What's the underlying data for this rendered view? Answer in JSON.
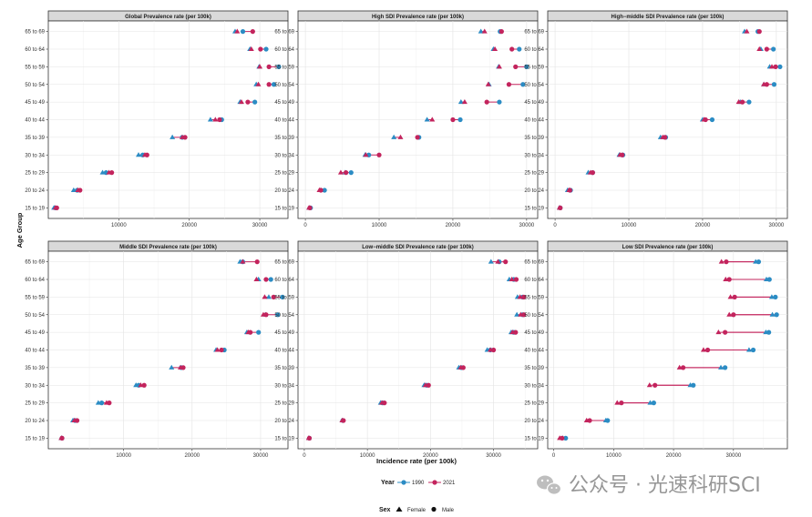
{
  "chart_data": {
    "type": "dumbbell",
    "xlabel": "Incidence rate (per 100k)",
    "ylabel": "Age Group",
    "categories": [
      "15 to 19",
      "20 to 24",
      "25 to 29",
      "30 to 34",
      "35 to 39",
      "40 to 44",
      "45 to 49",
      "50 to 54",
      "55 to 59",
      "60 to 64",
      "65 to 69"
    ],
    "years": [
      "1990",
      "2021"
    ],
    "sexes": [
      "Female",
      "Male"
    ],
    "year_legend_title": "Year",
    "sex_legend_title": "Sex",
    "colors": {
      "1990": "#2b8cc4",
      "2021": "#c3245d",
      "segment": "#c3245d"
    },
    "panels": [
      {
        "title": "Global Prevalence rate (per 100k)",
        "xlim": [
          0,
          34000
        ],
        "xticks": [
          10000,
          20000,
          30000
        ],
        "f1990": [
          800,
          3600,
          7700,
          12800,
          17600,
          23000,
          27200,
          29500,
          29900,
          28600,
          26500
        ],
        "m1990": [
          1000,
          4100,
          8200,
          13400,
          19000,
          24600,
          29300,
          32000,
          32700,
          30900,
          27600
        ],
        "f2021": [
          1000,
          4200,
          8600,
          13700,
          19000,
          23700,
          27400,
          29800,
          30000,
          28800,
          26800
        ],
        "m2021": [
          1200,
          4500,
          9000,
          14000,
          19400,
          24300,
          28300,
          31300,
          31300,
          30100,
          29000
        ]
      },
      {
        "title": "High SDI Prevalence rate (per 100k)",
        "xlim": [
          -1000,
          31500
        ],
        "xticks": [
          0,
          10000,
          20000,
          30000
        ],
        "f1990": [
          500,
          2100,
          5400,
          8100,
          12000,
          16500,
          21100,
          24900,
          26200,
          25500,
          23800
        ],
        "m1990": [
          700,
          2600,
          6200,
          8600,
          15400,
          21000,
          26300,
          29500,
          30000,
          29000,
          26400
        ],
        "f2021": [
          500,
          1900,
          4800,
          8200,
          12900,
          17200,
          21600,
          24800,
          26300,
          25700,
          24300
        ],
        "m2021": [
          600,
          2100,
          5500,
          10000,
          15200,
          20000,
          24600,
          27600,
          28500,
          28000,
          26600
        ]
      },
      {
        "title": "High−middle SDI Prevalence rate (per 100k)",
        "xlim": [
          -1000,
          31500
        ],
        "xticks": [
          0,
          10000,
          20000,
          30000
        ],
        "f1990": [
          600,
          1700,
          4500,
          8700,
          14300,
          20000,
          25100,
          28300,
          29100,
          27900,
          25700
        ],
        "m1990": [
          700,
          2100,
          5100,
          9200,
          15000,
          21300,
          26300,
          29700,
          30500,
          29600,
          27500
        ],
        "f2021": [
          600,
          1900,
          4800,
          8800,
          14600,
          20200,
          24900,
          28300,
          29400,
          27700,
          26000
        ],
        "m2021": [
          700,
          2000,
          5100,
          9100,
          14900,
          20400,
          25400,
          28700,
          29900,
          28700,
          27700
        ]
      },
      {
        "title": "Middle SDI Prevalence rate (per 100k)",
        "xlim": [
          -1000,
          34000
        ],
        "xticks": [
          10000,
          20000,
          30000
        ],
        "f1990": [
          900,
          2600,
          6300,
          11800,
          17000,
          23500,
          28000,
          30700,
          31200,
          29700,
          27000
        ],
        "m1990": [
          1000,
          2900,
          6800,
          12200,
          18400,
          24700,
          29700,
          32500,
          33200,
          31500,
          27400
        ],
        "f2021": [
          900,
          2800,
          7500,
          12500,
          18300,
          23700,
          28200,
          30400,
          30600,
          29400,
          27400
        ],
        "m2021": [
          1000,
          3200,
          7900,
          13000,
          18700,
          24300,
          28500,
          30800,
          31900,
          30800,
          29500
        ]
      },
      {
        "title": "Low−middle SDI Prevalence rate (per 100k)",
        "xlim": [
          -1000,
          37000
        ],
        "xticks": [
          0,
          10000,
          20000,
          30000
        ],
        "f1990": [
          700,
          6000,
          12100,
          19000,
          24500,
          29000,
          32800,
          33700,
          33800,
          32500,
          29600
        ],
        "m1990": [
          800,
          6100,
          12400,
          19400,
          24900,
          29500,
          33200,
          34600,
          34600,
          33200,
          30900
        ],
        "f2021": [
          700,
          6000,
          12300,
          19200,
          24800,
          29500,
          33000,
          34300,
          34200,
          32900,
          30700
        ],
        "m2021": [
          800,
          6200,
          12700,
          19700,
          25200,
          30000,
          33500,
          34800,
          34800,
          33600,
          31900
        ]
      },
      {
        "title": "Low SDI Prevalence rate (per 100k)",
        "xlim": [
          -1000,
          39000
        ],
        "xticks": [
          0,
          10000,
          20000,
          30000
        ],
        "f1990": [
          1500,
          8700,
          16100,
          22800,
          27900,
          32600,
          35400,
          36500,
          36400,
          35500,
          33700
        ],
        "m1990": [
          2000,
          9000,
          16700,
          23300,
          28600,
          33300,
          35900,
          37200,
          37000,
          36000,
          34200
        ],
        "f2021": [
          1000,
          5500,
          10600,
          16000,
          21000,
          25000,
          27500,
          29300,
          29500,
          28700,
          28000
        ],
        "m2021": [
          1400,
          6000,
          11300,
          16900,
          21600,
          25700,
          28600,
          30000,
          30200,
          29300,
          28800
        ]
      }
    ]
  },
  "watermark": {
    "text": "公众号 · 光速科研SCI"
  }
}
